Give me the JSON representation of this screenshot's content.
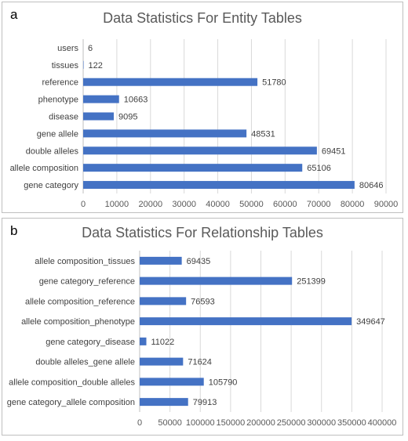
{
  "panels": [
    {
      "letter": "a"
    },
    {
      "letter": "b"
    }
  ],
  "chart_data": [
    {
      "type": "bar",
      "orientation": "horizontal",
      "title": "Data Statistics For Entity Tables",
      "categories": [
        "users",
        "tissues",
        "reference",
        "phenotype",
        "disease",
        "gene allele",
        "double alleles",
        "allele composition",
        "gene category"
      ],
      "values": [
        6,
        122,
        51780,
        10663,
        9095,
        48531,
        69451,
        65106,
        80646
      ],
      "xlim": [
        0,
        90000
      ],
      "xticks": [
        0,
        10000,
        20000,
        30000,
        40000,
        50000,
        60000,
        70000,
        80000,
        90000
      ],
      "grid": true,
      "bar_color": "#4472C4"
    },
    {
      "type": "bar",
      "orientation": "horizontal",
      "title": "Data Statistics For Relationship Tables",
      "categories": [
        "allele composition_tissues",
        "gene category_reference",
        "allele composition_reference",
        "allele composition_phenotype",
        "gene category_disease",
        "double alleles_gene allele",
        "allele composition_double alleles",
        "gene category_allele composition"
      ],
      "values": [
        69435,
        251399,
        76593,
        349647,
        11022,
        71624,
        105790,
        79913
      ],
      "xlim": [
        0,
        400000
      ],
      "xticks": [
        0,
        50000,
        100000,
        150000,
        200000,
        250000,
        300000,
        350000,
        400000
      ],
      "grid": true,
      "bar_color": "#4472C4"
    }
  ]
}
